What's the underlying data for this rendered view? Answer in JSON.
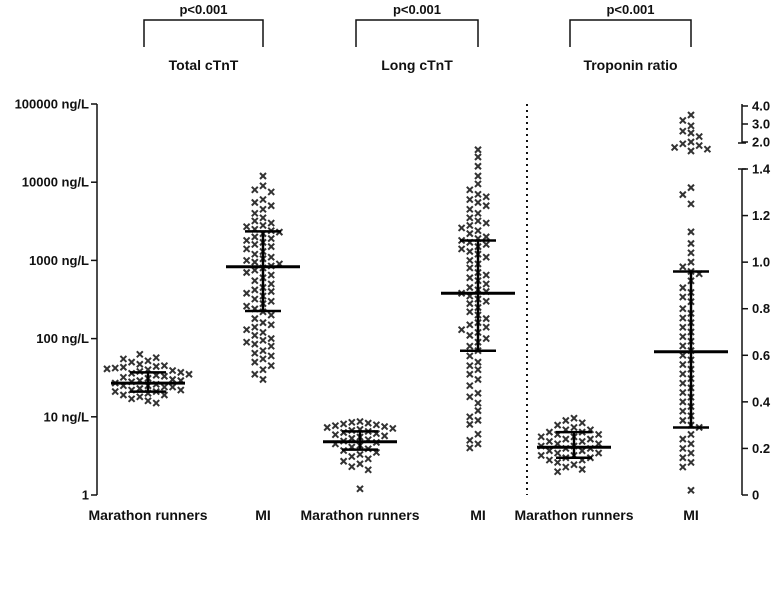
{
  "chart_data": {
    "type": "scatter",
    "subtype": "dot-plot with median and interquartile range",
    "left_axis": {
      "scale": "log10",
      "ylim": [
        1,
        100000
      ],
      "tick_values": [
        1,
        10,
        100,
        1000,
        10000,
        100000
      ],
      "tick_labels": [
        "1",
        "10 ng/L",
        "100 ng/L",
        "1000 ng/L",
        "10000 ng/L",
        "100000 ng/L"
      ]
    },
    "right_axis": {
      "scale": "linear, broken",
      "lower_range": [
        0,
        1.4
      ],
      "lower_tick_values": [
        0,
        0.2,
        0.4,
        0.6,
        0.8,
        1.0,
        1.2,
        1.4
      ],
      "lower_tick_labels": [
        "0",
        "0.2",
        "0.4",
        "0.6",
        "0.8",
        "1.0",
        "1.2",
        "1.4"
      ],
      "upper_tick_values": [
        2.0,
        3.0,
        4.0
      ],
      "upper_tick_labels": [
        "2.0",
        "3.0",
        "4.0"
      ]
    },
    "comparisons": [
      {
        "title": "Total cTnT",
        "p_value": "p<0.001",
        "groups": [
          0,
          1
        ]
      },
      {
        "title": "Long cTnT",
        "p_value": "p<0.001",
        "groups": [
          2,
          3
        ]
      },
      {
        "title": "Troponin ratio",
        "p_value": "p<0.001",
        "groups": [
          4,
          5
        ]
      }
    ],
    "categories": [
      "Marathon runners",
      "MI",
      "Marathon runners",
      "MI",
      "Marathon runners",
      "MI"
    ],
    "series": [
      {
        "name": "Total cTnT - Marathon runners",
        "axis": "left",
        "median": 27,
        "q1": 21,
        "q3": 37,
        "values": [
          52,
          63,
          47,
          57,
          44,
          50,
          40,
          45,
          38,
          43,
          55,
          36,
          39,
          42,
          34,
          37,
          41,
          33,
          35,
          31,
          29,
          32,
          30,
          28,
          26,
          25,
          27,
          24,
          29,
          25,
          23,
          22,
          24,
          21,
          22,
          20,
          19,
          21,
          18,
          17,
          19,
          16,
          15
        ]
      },
      {
        "name": "Total cTnT - MI",
        "axis": "left",
        "median": 830,
        "q1": 225,
        "q3": 2350,
        "values": [
          12000,
          9000,
          8000,
          7500,
          6000,
          5500,
          5000,
          4500,
          4000,
          3500,
          3200,
          3000,
          2800,
          2700,
          2500,
          2400,
          2300,
          2200,
          2000,
          1900,
          1800,
          1700,
          1600,
          1500,
          1400,
          1300,
          1200,
          1100,
          1050,
          1000,
          950,
          900,
          850,
          800,
          750,
          700,
          650,
          600,
          550,
          500,
          450,
          420,
          400,
          380,
          350,
          320,
          300,
          280,
          260,
          240,
          220,
          200,
          180,
          160,
          150,
          140,
          130,
          120,
          110,
          100,
          95,
          90,
          85,
          80,
          70,
          65,
          60,
          55,
          50,
          45,
          40,
          35,
          30
        ]
      },
      {
        "name": "Long cTnT - Marathon runners",
        "axis": "left",
        "median": 4.8,
        "q1": 3.8,
        "q3": 6.5,
        "values": [
          8.7,
          8.5,
          8.3,
          8.1,
          7.9,
          7.7,
          7.5,
          7.3,
          7.1,
          6.9,
          6.7,
          6.5,
          6.3,
          6.1,
          5.9,
          5.7,
          5.5,
          5.3,
          5.1,
          4.9,
          4.7,
          4.5,
          4.3,
          4.1,
          3.9,
          3.7,
          3.5,
          3.3,
          3.1,
          2.9,
          2.7,
          2.5,
          2.3,
          2.1,
          1.2
        ]
      },
      {
        "name": "Long cTnT - MI",
        "axis": "left",
        "median": 380,
        "q1": 70,
        "q3": 1800,
        "values": [
          26000,
          21000,
          16000,
          12000,
          9500,
          8000,
          7000,
          6500,
          6000,
          5500,
          5000,
          4500,
          4000,
          3500,
          3200,
          3000,
          2800,
          2600,
          2400,
          2200,
          2000,
          1900,
          1800,
          1700,
          1600,
          1500,
          1400,
          1300,
          1200,
          1100,
          1000,
          900,
          800,
          700,
          650,
          600,
          550,
          500,
          450,
          420,
          400,
          380,
          350,
          320,
          300,
          280,
          250,
          220,
          200,
          180,
          160,
          150,
          140,
          130,
          120,
          110,
          100,
          90,
          80,
          70,
          60,
          50,
          45,
          40,
          35,
          30,
          25,
          20,
          18,
          15,
          12,
          10,
          9,
          8,
          6,
          5,
          4.5,
          4
        ]
      },
      {
        "name": "Troponin ratio - Marathon runners",
        "axis": "right",
        "median": 0.205,
        "q1": 0.16,
        "q3": 0.27,
        "values": [
          0.33,
          0.32,
          0.31,
          0.3,
          0.29,
          0.28,
          0.28,
          0.27,
          0.27,
          0.26,
          0.26,
          0.25,
          0.25,
          0.24,
          0.24,
          0.23,
          0.23,
          0.22,
          0.22,
          0.21,
          0.21,
          0.2,
          0.2,
          0.19,
          0.19,
          0.18,
          0.18,
          0.17,
          0.17,
          0.16,
          0.16,
          0.15,
          0.15,
          0.14,
          0.13,
          0.12,
          0.11,
          0.1
        ]
      },
      {
        "name": "Troponin ratio - MI",
        "axis": "right",
        "median": 0.615,
        "q1": 0.29,
        "q3": 0.96,
        "values": [
          3.5,
          3.2,
          2.9,
          2.6,
          2.5,
          2.3,
          2.0,
          1.9,
          1.8,
          1.7,
          1.6,
          1.5,
          1.32,
          1.29,
          1.25,
          1.13,
          1.08,
          1.04,
          1.0,
          0.98,
          0.96,
          0.95,
          0.92,
          0.89,
          0.87,
          0.85,
          0.83,
          0.8,
          0.78,
          0.76,
          0.74,
          0.72,
          0.7,
          0.68,
          0.66,
          0.64,
          0.62,
          0.6,
          0.58,
          0.56,
          0.54,
          0.52,
          0.5,
          0.48,
          0.46,
          0.44,
          0.42,
          0.4,
          0.38,
          0.36,
          0.34,
          0.32,
          0.3,
          0.29,
          0.26,
          0.24,
          0.22,
          0.2,
          0.18,
          0.16,
          0.14,
          0.12,
          0.02
        ]
      }
    ]
  }
}
